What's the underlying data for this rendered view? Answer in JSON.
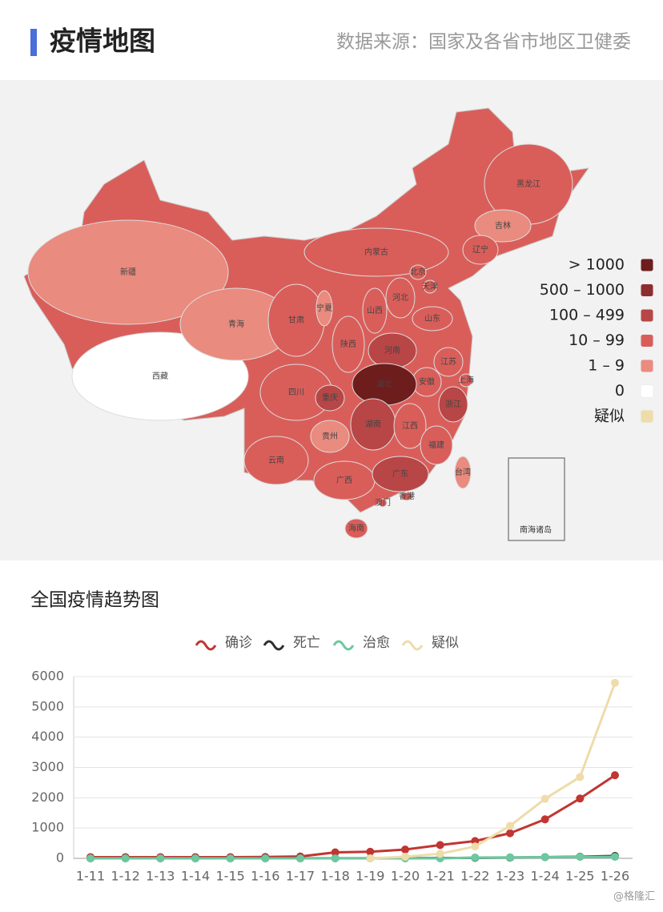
{
  "header": {
    "title": "疫情地图",
    "source": "数据来源：国家及各省市地区卫健委"
  },
  "map": {
    "legend": [
      {
        "label": "> 1000",
        "color": "#6e1d1d"
      },
      {
        "label": "500 – 1000",
        "color": "#8e2d2d"
      },
      {
        "label": "100 – 499",
        "color": "#b84646"
      },
      {
        "label": "10 – 99",
        "color": "#d95e5a"
      },
      {
        "label": "1 – 9",
        "color": "#e98b7e"
      },
      {
        "label": "0",
        "color": "#ffffff"
      },
      {
        "label": "疑似",
        "color": "#eedcaa"
      }
    ],
    "regions": [
      {
        "name": "新疆",
        "color": "#e98b7e"
      },
      {
        "name": "西藏",
        "color": "#ffffff"
      },
      {
        "name": "青海",
        "color": "#e98b7e"
      },
      {
        "name": "甘肃",
        "color": "#d95e5a"
      },
      {
        "name": "宁夏",
        "color": "#e98b7e"
      },
      {
        "name": "内蒙古",
        "color": "#d95e5a"
      },
      {
        "name": "黑龙江",
        "color": "#d95e5a"
      },
      {
        "name": "吉林",
        "color": "#e98b7e"
      },
      {
        "name": "辽宁",
        "color": "#d95e5a"
      },
      {
        "name": "北京",
        "color": "#d95e5a"
      },
      {
        "name": "天津",
        "color": "#d95e5a"
      },
      {
        "name": "河北",
        "color": "#d95e5a"
      },
      {
        "name": "山西",
        "color": "#d95e5a"
      },
      {
        "name": "山东",
        "color": "#d95e5a"
      },
      {
        "name": "陕西",
        "color": "#d95e5a"
      },
      {
        "name": "河南",
        "color": "#b84646"
      },
      {
        "name": "江苏",
        "color": "#d95e5a"
      },
      {
        "name": "上海",
        "color": "#d95e5a"
      },
      {
        "name": "安徽",
        "color": "#d95e5a"
      },
      {
        "name": "浙江",
        "color": "#b84646"
      },
      {
        "name": "湖北",
        "color": "#6e1d1d"
      },
      {
        "name": "四川",
        "color": "#d95e5a"
      },
      {
        "name": "重庆",
        "color": "#b84646"
      },
      {
        "name": "湖南",
        "color": "#b84646"
      },
      {
        "name": "江西",
        "color": "#d95e5a"
      },
      {
        "name": "福建",
        "color": "#d95e5a"
      },
      {
        "name": "贵州",
        "color": "#e98b7e"
      },
      {
        "name": "云南",
        "color": "#d95e5a"
      },
      {
        "name": "广西",
        "color": "#d95e5a"
      },
      {
        "name": "广东",
        "color": "#b84646"
      },
      {
        "name": "台湾",
        "color": "#e98b7e"
      },
      {
        "name": "香港",
        "color": "#d95e5a"
      },
      {
        "name": "澳门",
        "color": "#d95e5a"
      },
      {
        "name": "海南",
        "color": "#d95e5a"
      }
    ],
    "inset_label": "南海诸岛"
  },
  "chart_data": {
    "type": "line",
    "title": "全国疫情趋势图",
    "categories": [
      "1-11",
      "1-12",
      "1-13",
      "1-14",
      "1-15",
      "1-16",
      "1-17",
      "1-18",
      "1-19",
      "1-20",
      "1-21",
      "1-22",
      "1-23",
      "1-24",
      "1-25",
      "1-26"
    ],
    "series": [
      {
        "name": "确诊",
        "color": "#c23531",
        "values": [
          41,
          41,
          41,
          41,
          41,
          45,
          62,
          198,
          218,
          291,
          440,
          571,
          830,
          1287,
          1975,
          2744
        ]
      },
      {
        "name": "死亡",
        "color": "#2f2f2f",
        "values": [
          1,
          1,
          1,
          1,
          2,
          2,
          2,
          3,
          3,
          6,
          9,
          17,
          25,
          41,
          56,
          80
        ]
      },
      {
        "name": "治愈",
        "color": "#6cc8a0",
        "values": [
          0,
          0,
          0,
          0,
          0,
          0,
          0,
          0,
          0,
          0,
          0,
          28,
          34,
          38,
          49,
          51
        ]
      },
      {
        "name": "疑似",
        "color": "#eedcaa",
        "values": [
          null,
          null,
          null,
          null,
          null,
          null,
          null,
          null,
          0,
          54,
          150,
          393,
          1072,
          1965,
          2684,
          5794
        ]
      }
    ],
    "ylim": [
      0,
      6000
    ],
    "yticks": [
      0,
      1000,
      2000,
      3000,
      4000,
      5000,
      6000
    ],
    "grid": true
  },
  "watermark": "@格隆汇"
}
